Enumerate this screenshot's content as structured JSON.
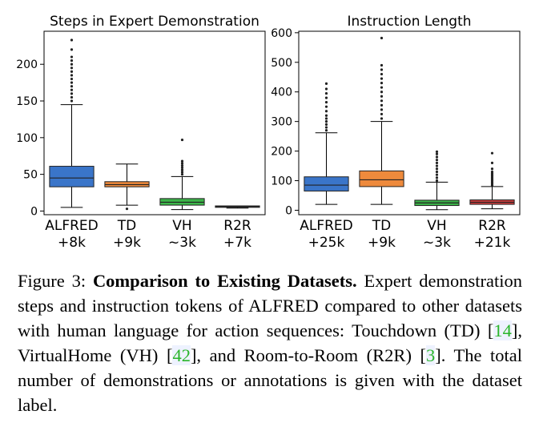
{
  "chart_data": [
    {
      "type": "box",
      "title": "Steps in Expert Demonstration",
      "xlabel": "",
      "ylabel": "",
      "ylim": [
        -5,
        245
      ],
      "yticks": [
        0,
        50,
        100,
        150,
        200
      ],
      "categories": [
        "ALFRED",
        "TD",
        "VH",
        "R2R"
      ],
      "sublabels": [
        "+8k",
        "+9k",
        "~3k",
        "+7k"
      ],
      "colors": [
        "#3a75c9",
        "#ee8a3c",
        "#3cb449",
        "#d23e3e"
      ],
      "boxes": [
        {
          "whisker_low": 5,
          "q1": 33,
          "median": 45,
          "q3": 61,
          "whisker_high": 145,
          "outliers": [
            150,
            155,
            160,
            165,
            170,
            175,
            180,
            185,
            190,
            195,
            200,
            205,
            210,
            220,
            233
          ]
        },
        {
          "whisker_low": 8,
          "q1": 33,
          "median": 36,
          "q3": 40,
          "whisker_high": 64,
          "outliers": [
            3
          ]
        },
        {
          "whisker_low": 2,
          "q1": 8,
          "median": 12,
          "q3": 17,
          "whisker_high": 47,
          "outliers": [
            50,
            53,
            56,
            59,
            62,
            65,
            68,
            97
          ]
        },
        {
          "whisker_low": 4,
          "q1": 5,
          "median": 6,
          "q3": 7,
          "whisker_high": 7,
          "outliers": []
        }
      ]
    },
    {
      "type": "box",
      "title": "Instruction Length",
      "xlabel": "",
      "ylabel": "",
      "ylim": [
        -15,
        605
      ],
      "yticks": [
        0,
        100,
        200,
        300,
        400,
        500,
        600
      ],
      "categories": [
        "ALFRED",
        "TD",
        "VH",
        "R2R"
      ],
      "sublabels": [
        "+25k",
        "+9k",
        "~3k",
        "+21k"
      ],
      "colors": [
        "#3a75c9",
        "#ee8a3c",
        "#3cb449",
        "#d23e3e"
      ],
      "boxes": [
        {
          "whisker_low": 20,
          "q1": 65,
          "median": 85,
          "q3": 113,
          "whisker_high": 262,
          "outliers": [
            270,
            280,
            290,
            300,
            310,
            320,
            335,
            350,
            365,
            380,
            395,
            410,
            428
          ]
        },
        {
          "whisker_low": 20,
          "q1": 80,
          "median": 103,
          "q3": 133,
          "whisker_high": 300,
          "outliers": [
            310,
            325,
            340,
            355,
            370,
            385,
            400,
            415,
            430,
            445,
            460,
            475,
            490,
            582
          ]
        },
        {
          "whisker_low": 2,
          "q1": 16,
          "median": 25,
          "q3": 34,
          "whisker_high": 95,
          "outliers": [
            100,
            110,
            120,
            130,
            140,
            150,
            160,
            170,
            180,
            190,
            198
          ]
        },
        {
          "whisker_low": 5,
          "q1": 20,
          "median": 27,
          "q3": 35,
          "whisker_high": 80,
          "outliers": [
            85,
            90,
            95,
            100,
            105,
            110,
            115,
            120,
            125,
            130,
            140,
            160,
            193
          ]
        }
      ]
    }
  ],
  "caption": {
    "prefix": "Figure 3: ",
    "title": "Comparison to Existing Datasets.",
    "text1": " Expert demonstration steps and instruction tokens of ALFRED compared to other datasets with human language for action sequences: Touchdown (TD) [",
    "ref1": "14",
    "text2": "], VirtualHome (VH) [",
    "ref2": "42",
    "text3": "], and Room-to-Room (R2R) [",
    "ref3": "3",
    "text4": "]. The total number of demonstrations or annotations is given with the dataset label."
  }
}
